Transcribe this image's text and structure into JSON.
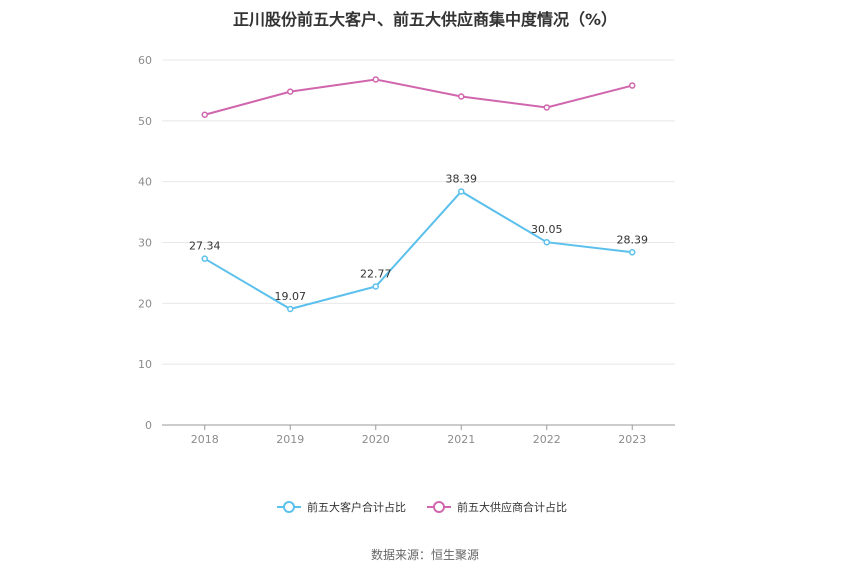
{
  "chart_data": {
    "type": "line",
    "title": "正川股份前五大客户、前五大供应商集中度情况（%）",
    "categories": [
      "2018",
      "2019",
      "2020",
      "2021",
      "2022",
      "2023"
    ],
    "series": [
      {
        "name": "前五大客户合计占比",
        "values": [
          27.34,
          19.07,
          22.77,
          38.39,
          30.05,
          28.39
        ],
        "value_labels": [
          "27.34",
          "19.07",
          "22.77",
          "38.39",
          "30.05",
          "28.39"
        ],
        "color": "#5bc0eb",
        "show_labels": true
      },
      {
        "name": "前五大供应商合计占比",
        "values": [
          51.0,
          54.8,
          56.8,
          54.0,
          52.2,
          55.8
        ],
        "color": "#d066ad",
        "show_labels": false
      }
    ],
    "ylim": [
      0,
      60
    ],
    "yticks": [
      "0",
      "10",
      "20",
      "30",
      "40",
      "50",
      "60"
    ],
    "grid": true,
    "legend_position": "bottom",
    "source": "数据来源：恒生聚源"
  }
}
